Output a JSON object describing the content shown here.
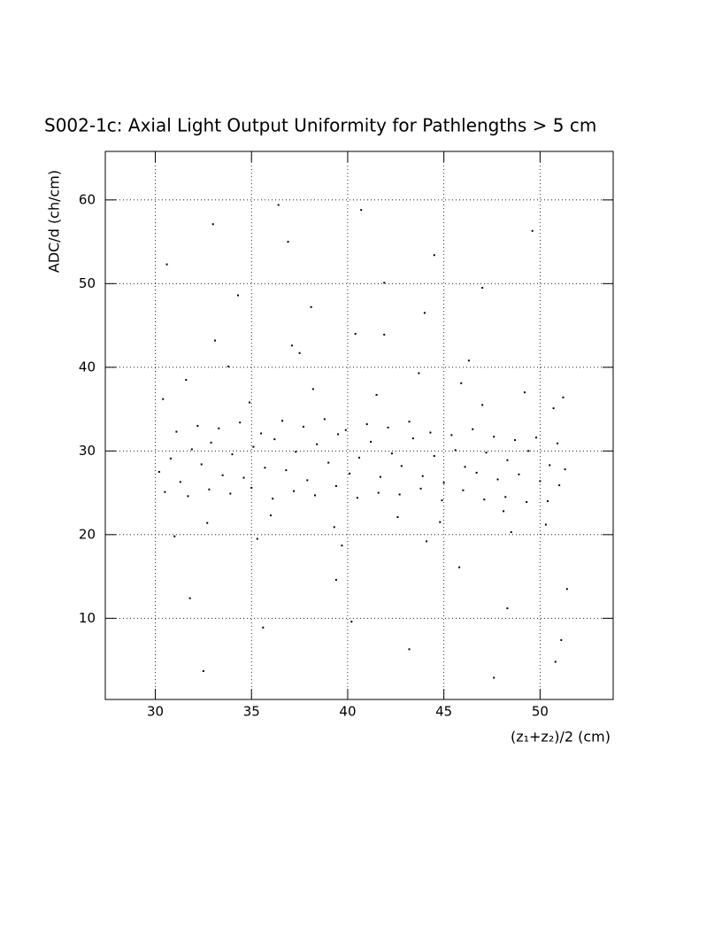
{
  "chart_data": {
    "type": "scatter",
    "title": "S002-1c: Axial Light Output Uniformity for Pathlengths > 5 cm",
    "x_label": "(z₁+z₂)/2 (cm)",
    "y_label": "ADC/d (ch/cm)",
    "xlim": [
      27.4,
      53.8
    ],
    "ylim": [
      0.3,
      65.8
    ],
    "xticks": [
      30,
      35,
      40,
      45,
      50
    ],
    "yticks": [
      10,
      20,
      30,
      40,
      50,
      60
    ],
    "grid": true,
    "color": "#000000",
    "x": [
      30.2,
      30.8,
      31.3,
      31.9,
      32.4,
      32.9,
      33.5,
      34.0,
      34.6,
      35.1,
      35.7,
      36.2,
      36.8,
      37.3,
      37.9,
      38.4,
      39.0,
      39.5,
      40.1,
      40.6,
      41.2,
      41.7,
      42.3,
      42.8,
      43.4,
      43.9,
      44.5,
      45.0,
      45.6,
      46.1,
      46.7,
      47.2,
      47.8,
      48.3,
      48.9,
      49.4,
      50.0,
      50.5,
      51.0,
      51.3,
      30.5,
      31.1,
      31.7,
      32.2,
      32.8,
      33.3,
      33.9,
      34.4,
      35.0,
      35.5,
      36.1,
      36.6,
      37.2,
      37.7,
      38.3,
      38.8,
      39.4,
      39.9,
      40.5,
      41.0,
      41.6,
      42.1,
      42.7,
      43.2,
      43.8,
      44.3,
      44.9,
      45.4,
      46.0,
      46.5,
      47.1,
      47.6,
      48.2,
      48.7,
      49.3,
      49.8,
      50.4,
      50.9,
      30.4,
      31.6,
      32.7,
      33.8,
      34.9,
      36.0,
      37.1,
      38.2,
      39.3,
      40.4,
      41.5,
      42.6,
      43.7,
      44.8,
      45.9,
      47.0,
      48.1,
      49.2,
      50.3,
      51.2,
      31.0,
      33.1,
      35.3,
      37.5,
      39.7,
      41.9,
      44.1,
      46.3,
      48.5,
      50.7,
      30.6,
      31.8,
      33.0,
      34.3,
      35.6,
      36.9,
      38.1,
      39.4,
      40.7,
      41.9,
      43.2,
      44.5,
      45.8,
      47.0,
      48.3,
      49.6,
      50.8,
      51.4,
      32.5,
      36.4,
      40.2,
      44.0,
      47.6,
      51.1
    ],
    "values": [
      27.5,
      29.1,
      26.3,
      30.2,
      28.4,
      31.0,
      27.1,
      29.6,
      26.8,
      30.5,
      28.0,
      31.4,
      27.7,
      29.9,
      26.5,
      30.8,
      28.6,
      32.0,
      27.3,
      29.2,
      31.1,
      26.9,
      29.7,
      28.2,
      31.5,
      27.0,
      29.4,
      26.2,
      30.1,
      28.1,
      27.4,
      29.8,
      26.6,
      28.9,
      27.2,
      30.0,
      26.4,
      28.3,
      25.9,
      27.8,
      25.1,
      32.3,
      24.6,
      33.0,
      25.4,
      32.7,
      24.9,
      33.4,
      25.6,
      32.1,
      24.3,
      33.6,
      25.2,
      32.9,
      24.7,
      33.8,
      25.8,
      32.5,
      24.4,
      33.2,
      25.0,
      32.8,
      24.8,
      33.5,
      25.5,
      32.2,
      24.1,
      31.9,
      25.3,
      32.6,
      24.2,
      31.7,
      24.5,
      31.3,
      23.9,
      31.6,
      24.0,
      30.9,
      36.2,
      38.5,
      21.4,
      40.1,
      35.8,
      22.3,
      42.6,
      37.4,
      20.9,
      44.0,
      36.7,
      22.1,
      39.3,
      21.5,
      38.1,
      35.5,
      22.8,
      37.0,
      21.2,
      36.4,
      19.8,
      43.2,
      19.5,
      41.7,
      18.7,
      43.9,
      19.2,
      40.8,
      20.3,
      35.1,
      52.3,
      12.4,
      57.1,
      48.6,
      8.9,
      55.0,
      47.2,
      14.6,
      58.8,
      50.1,
      6.3,
      53.4,
      16.1,
      49.5,
      11.2,
      56.3,
      4.8,
      13.5,
      3.7,
      59.4,
      9.6,
      46.5,
      2.9,
      7.4
    ]
  }
}
